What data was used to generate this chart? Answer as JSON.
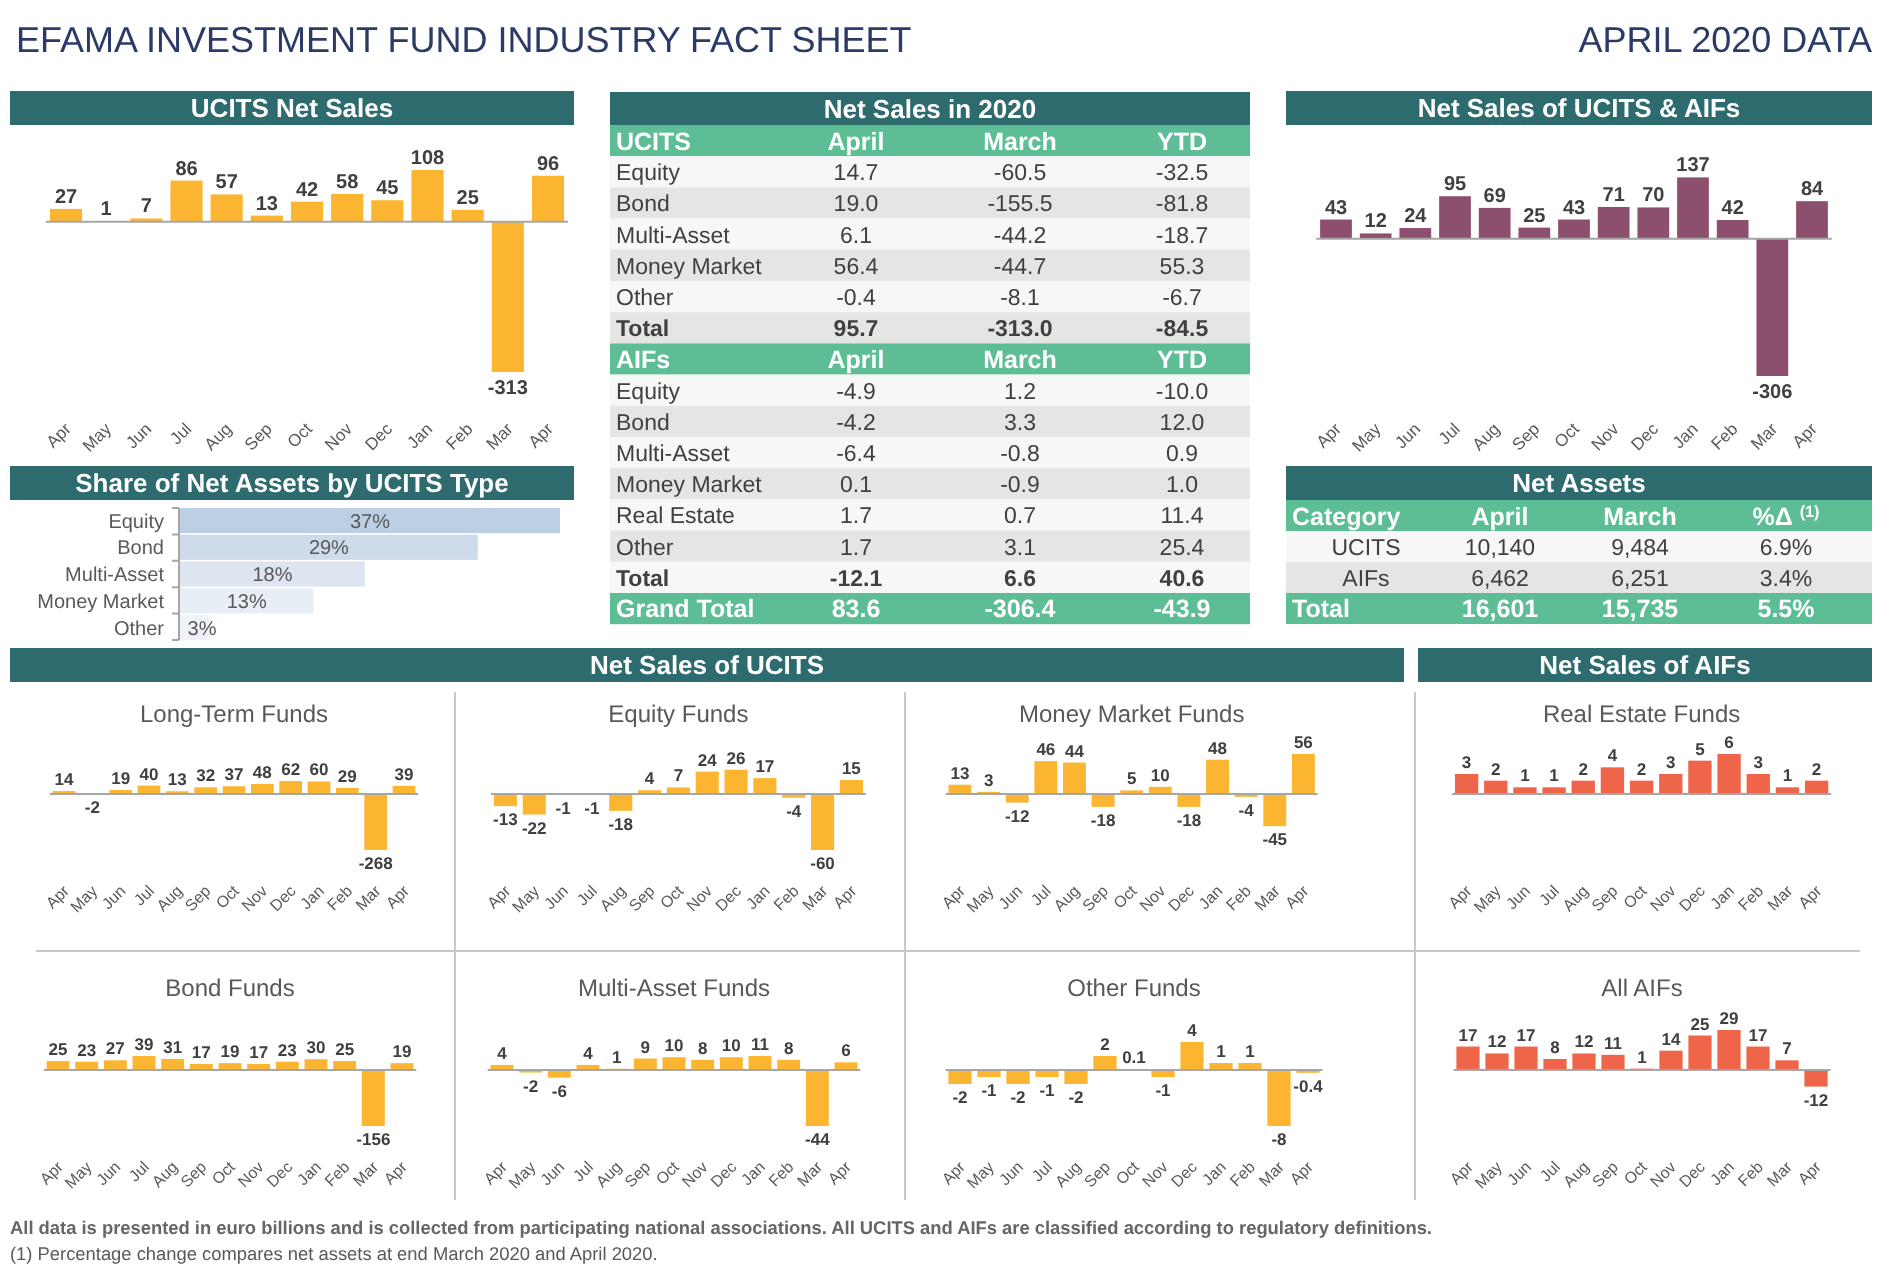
{
  "chart_data": [
    {
      "type": "other",
      "title": "EFAMA INVESTMENT FUND INDUSTRY FACT SHEET",
      "subtitle": "APRIL 2020 DATA",
      "annotations": [
        "All data is presented in euro billions and is collected from participating national associations. All UCITS and AIFs are classified according to regulatory definitions.",
        "(1) Percentage change compares net assets at end March 2020 and April 2020."
      ]
    },
    {
      "type": "bar",
      "title": "UCITS Net Sales",
      "categories": [
        "Apr",
        "May",
        "Jun",
        "Jul",
        "Aug",
        "Sep",
        "Oct",
        "Nov",
        "Dec",
        "Jan",
        "Feb",
        "Mar",
        "Apr"
      ],
      "values": [
        27,
        1,
        7,
        86,
        57,
        13,
        42,
        58,
        45,
        108,
        25,
        -313,
        96
      ],
      "color": "#fbb531",
      "data_labels": true
    },
    {
      "type": "other",
      "title": "Net Sales in 2020",
      "ylabel": "UCITS",
      "categories": [
        "Equity",
        "Bond",
        "Multi-Asset",
        "Money Market",
        "Other",
        "Total"
      ],
      "series": [
        {
          "name": "April",
          "values": [
            14.7,
            19.0,
            6.1,
            56.4,
            -0.4,
            95.7
          ],
          "value_labels": [
            "14.7",
            "19.0",
            "6.1",
            "56.4",
            "-0.4",
            "95.7"
          ],
          "colors": [
            "#f7f7f7",
            "#e5e5e5",
            "#f7f7f7",
            "#e5e5e5",
            "#f7f7f7",
            "#e5e5e5"
          ]
        },
        {
          "name": "March",
          "values": [
            -60.5,
            -155.5,
            -44.2,
            -44.7,
            -8.1,
            -313.0
          ],
          "value_labels": [
            "-60.5",
            "-155.5",
            "-44.2",
            "-44.7",
            "-8.1",
            "-313.0"
          ],
          "colors": [
            "#f7f7f7",
            "#e5e5e5",
            "#f7f7f7",
            "#e5e5e5",
            "#f7f7f7",
            "#e5e5e5"
          ]
        },
        {
          "name": "YTD",
          "values": [
            -32.5,
            -81.8,
            -18.7,
            55.3,
            -6.7,
            -84.5
          ],
          "value_labels": [
            "-32.5",
            "-81.8",
            "-18.7",
            "55.3",
            "-6.7",
            "-84.5"
          ],
          "colors": [
            "#f7f7f7",
            "#e5e5e5",
            "#f7f7f7",
            "#e5e5e5",
            "#f7f7f7",
            "#e5e5e5"
          ]
        }
      ]
    },
    {
      "type": "other",
      "ylabel": "AIFs",
      "categories": [
        "Equity",
        "Bond",
        "Multi-Asset",
        "Money Market",
        "Real Estate",
        "Other",
        "Total",
        "Grand Total"
      ],
      "series": [
        {
          "name": "April",
          "values": [
            -4.9,
            -4.2,
            -6.4,
            0.1,
            1.7,
            1.7,
            -12.1,
            83.6
          ],
          "value_labels": [
            "-4.9",
            "-4.2",
            "-6.4",
            "0.1",
            "1.7",
            "1.7",
            "-12.1",
            "83.6"
          ],
          "colors": [
            "#f7f7f7",
            "#e5e5e5",
            "#f7f7f7",
            "#e5e5e5",
            "#f7f7f7",
            "#e5e5e5",
            "#f7f7f7",
            "#5dbe96"
          ]
        },
        {
          "name": "March",
          "values": [
            1.2,
            3.3,
            -0.8,
            -0.9,
            0.7,
            3.1,
            6.6,
            -306.4
          ],
          "value_labels": [
            "1.2",
            "3.3",
            "-0.8",
            "-0.9",
            "0.7",
            "3.1",
            "6.6",
            "-306.4"
          ],
          "colors": [
            "#f7f7f7",
            "#e5e5e5",
            "#f7f7f7",
            "#e5e5e5",
            "#f7f7f7",
            "#e5e5e5",
            "#f7f7f7",
            "#5dbe96"
          ]
        },
        {
          "name": "YTD",
          "values": [
            -10.0,
            12.0,
            0.9,
            1.0,
            11.4,
            25.4,
            40.6,
            -43.9
          ],
          "value_labels": [
            "-10.0",
            "12.0",
            "0.9",
            "1.0",
            "11.4",
            "25.4",
            "40.6",
            "-43.9"
          ],
          "colors": [
            "#f7f7f7",
            "#e5e5e5",
            "#f7f7f7",
            "#e5e5e5",
            "#f7f7f7",
            "#e5e5e5",
            "#f7f7f7",
            "#5dbe96"
          ]
        }
      ]
    },
    {
      "type": "bar",
      "title": "Net Sales of UCITS & AIFs",
      "categories": [
        "Apr",
        "May",
        "Jun",
        "Jul",
        "Aug",
        "Sep",
        "Oct",
        "Nov",
        "Dec",
        "Jan",
        "Feb",
        "Mar",
        "Apr"
      ],
      "values": [
        43,
        12,
        24,
        95,
        69,
        25,
        43,
        71,
        70,
        137,
        42,
        -306,
        84
      ],
      "color": "#8c4f6e",
      "data_labels": true
    },
    {
      "type": "bar",
      "orientation": "horizontal",
      "title": "Share of Net Assets by UCITS Type",
      "categories": [
        "Equity",
        "Bond",
        "Multi-Asset",
        "Money Market",
        "Other"
      ],
      "values": [
        37,
        29,
        18,
        13,
        3
      ],
      "value_labels": [
        "37%",
        "29%",
        "18%",
        "13%",
        "3%"
      ],
      "colors": [
        "#bccfe3",
        "#cddbea",
        "#dce5f0",
        "#e8eef6",
        "#eff3f9"
      ]
    },
    {
      "type": "other",
      "title": "Net Assets",
      "ylabel": "Category",
      "categories": [
        "UCITS",
        "AIFs",
        "Total"
      ],
      "series": [
        {
          "name": "April",
          "values": [
            10140,
            6462,
            16601
          ],
          "value_labels": [
            "10,140",
            "6,462",
            "16,601"
          ],
          "colors": [
            "#f7f7f7",
            "#e5e5e5",
            "#5dbe96"
          ]
        },
        {
          "name": "March",
          "values": [
            9484,
            6251,
            15735
          ],
          "value_labels": [
            "9,484",
            "6,251",
            "15,735"
          ],
          "colors": [
            "#f7f7f7",
            "#e5e5e5",
            "#5dbe96"
          ]
        },
        {
          "name": "%Δ $^{(1)}$",
          "values": [
            6.9,
            3.4,
            5.5
          ],
          "value_labels": [
            "6.9%",
            "3.4%",
            "5.5%"
          ],
          "colors": [
            "#f7f7f7",
            "#e5e5e5",
            "#5dbe96"
          ]
        }
      ]
    },
    {
      "type": "other",
      "title": "Net Sales of UCITS"
    },
    {
      "type": "other",
      "title": "Net Sales of AIFs"
    },
    {
      "type": "bar",
      "title": "Long-Term Funds",
      "categories": [
        "Apr",
        "May",
        "Jun",
        "Jul",
        "Aug",
        "Sep",
        "Oct",
        "Nov",
        "Dec",
        "Jan",
        "Feb",
        "Mar",
        "Apr"
      ],
      "values": [
        14,
        -2,
        19,
        40,
        13,
        32,
        37,
        48,
        62,
        60,
        29,
        -268,
        39
      ],
      "color": "#fbb531",
      "data_labels": true
    },
    {
      "type": "bar",
      "title": "Equity Funds",
      "categories": [
        "Apr",
        "May",
        "Jun",
        "Jul",
        "Aug",
        "Sep",
        "Oct",
        "Nov",
        "Dec",
        "Jan",
        "Feb",
        "Mar",
        "Apr"
      ],
      "values": [
        -13,
        -22,
        -1,
        -1,
        -18,
        4,
        7,
        24,
        26,
        17,
        -4,
        -60,
        15
      ],
      "color": "#fbb531",
      "data_labels": true
    },
    {
      "type": "bar",
      "title": "Money Market Funds",
      "categories": [
        "Apr",
        "May",
        "Jun",
        "Jul",
        "Aug",
        "Sep",
        "Oct",
        "Nov",
        "Dec",
        "Jan",
        "Feb",
        "Mar",
        "Apr"
      ],
      "values": [
        13,
        3,
        -12,
        46,
        44,
        -18,
        5,
        10,
        -18,
        48,
        -4,
        -45,
        56
      ],
      "color": "#fbb531",
      "data_labels": true
    },
    {
      "type": "bar",
      "title": "Real Estate Funds",
      "categories": [
        "Apr",
        "May",
        "Jun",
        "Jul",
        "Aug",
        "Sep",
        "Oct",
        "Nov",
        "Dec",
        "Jan",
        "Feb",
        "Mar",
        "Apr"
      ],
      "values": [
        3,
        2,
        1,
        1,
        2,
        4,
        2,
        3,
        5,
        6,
        3,
        1,
        2
      ],
      "color": "#ef6549",
      "data_labels": true
    },
    {
      "type": "bar",
      "title": "Bond Funds",
      "categories": [
        "Apr",
        "May",
        "Jun",
        "Jul",
        "Aug",
        "Sep",
        "Oct",
        "Nov",
        "Dec",
        "Jan",
        "Feb",
        "Mar",
        "Apr"
      ],
      "values": [
        25,
        23,
        27,
        39,
        31,
        17,
        19,
        17,
        23,
        30,
        25,
        -156,
        19
      ],
      "color": "#fbb531",
      "data_labels": true
    },
    {
      "type": "bar",
      "title": "Multi-Asset Funds",
      "categories": [
        "Apr",
        "May",
        "Jun",
        "Jul",
        "Aug",
        "Sep",
        "Oct",
        "Nov",
        "Dec",
        "Jan",
        "Feb",
        "Mar",
        "Apr"
      ],
      "values": [
        4,
        -2,
        -6,
        4,
        1,
        9,
        10,
        8,
        10,
        11,
        8,
        -44,
        6
      ],
      "color": "#fbb531",
      "data_labels": true
    },
    {
      "type": "bar",
      "title": "Other Funds",
      "categories": [
        "Apr",
        "May",
        "Jun",
        "Jul",
        "Aug",
        "Sep",
        "Oct",
        "Nov",
        "Dec",
        "Jan",
        "Feb",
        "Mar",
        "Apr"
      ],
      "values": [
        -2,
        -1,
        -2,
        -1,
        -2,
        2,
        0.1,
        -1,
        4,
        1,
        1,
        -8,
        -0.4
      ],
      "color": "#fbb531",
      "data_labels": true
    },
    {
      "type": "bar",
      "title": "All AIFs",
      "categories": [
        "Apr",
        "May",
        "Jun",
        "Jul",
        "Aug",
        "Sep",
        "Oct",
        "Nov",
        "Dec",
        "Jan",
        "Feb",
        "Mar",
        "Apr"
      ],
      "values": [
        17,
        12,
        17,
        8,
        12,
        11,
        1,
        14,
        25,
        29,
        17,
        7,
        -12
      ],
      "color": "#ef6549",
      "data_labels": true
    }
  ]
}
